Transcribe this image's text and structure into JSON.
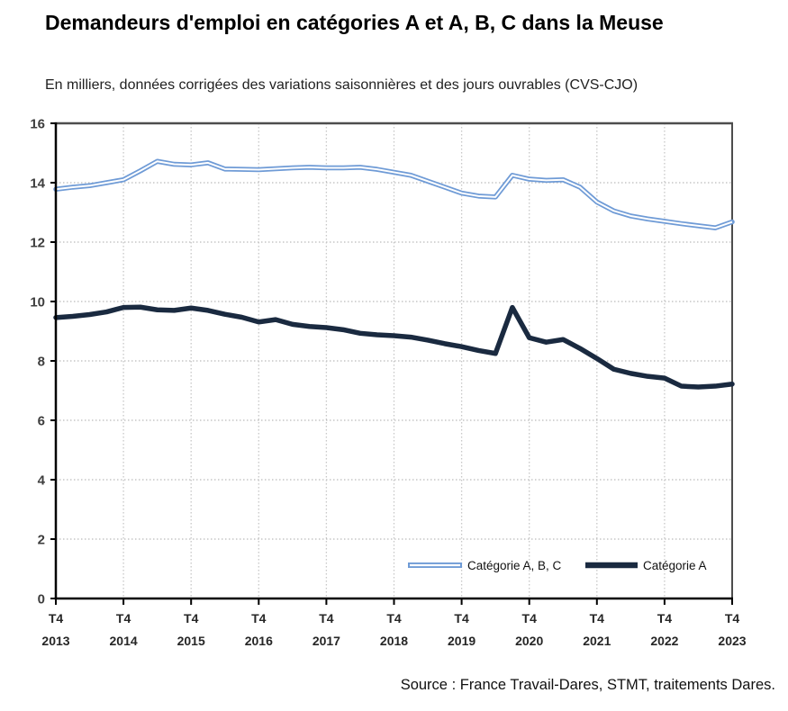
{
  "title": "Demandeurs d'emploi en catégories A et A, B, C dans la Meuse",
  "subtitle": "En milliers, données corrigées des variations saisonnières et des jours ouvrables (CVS-CJO)",
  "source": "Source : France Travail-Dares, STMT, traitements Dares.",
  "chart_data": {
    "type": "line",
    "x_unit": "quarterly, T4 2013 to T4 2023 (41 points)",
    "x_ticks": [
      {
        "q": "T4",
        "year": "2013"
      },
      {
        "q": "T4",
        "year": "2014"
      },
      {
        "q": "T4",
        "year": "2015"
      },
      {
        "q": "T4",
        "year": "2016"
      },
      {
        "q": "T4",
        "year": "2017"
      },
      {
        "q": "T4",
        "year": "2018"
      },
      {
        "q": "T4",
        "year": "2019"
      },
      {
        "q": "T4",
        "year": "2020"
      },
      {
        "q": "T4",
        "year": "2021"
      },
      {
        "q": "T4",
        "year": "2022"
      },
      {
        "q": "T4",
        "year": "2023"
      }
    ],
    "ylim": [
      0,
      16
    ],
    "y_ticks": [
      0,
      2,
      4,
      6,
      8,
      10,
      12,
      14,
      16
    ],
    "grid": true,
    "legend_position": "inside-bottom-right",
    "series": [
      {
        "name": "Catégorie A, B, C",
        "color": "#6f9bd6",
        "style": "double-line",
        "values": [
          13.78,
          13.85,
          13.9,
          14.0,
          14.1,
          14.4,
          14.72,
          14.62,
          14.6,
          14.67,
          14.46,
          14.45,
          14.44,
          14.47,
          14.5,
          14.52,
          14.5,
          14.5,
          14.52,
          14.45,
          14.35,
          14.25,
          14.05,
          13.85,
          13.65,
          13.55,
          13.52,
          14.25,
          14.12,
          14.08,
          14.1,
          13.85,
          13.35,
          13.05,
          12.88,
          12.78,
          12.7,
          12.62,
          12.55,
          12.48,
          12.68
        ]
      },
      {
        "name": "Catégorie A",
        "color": "#1a2a40",
        "style": "thick-line",
        "values": [
          9.46,
          9.5,
          9.56,
          9.65,
          9.8,
          9.81,
          9.72,
          9.7,
          9.78,
          9.7,
          9.57,
          9.47,
          9.31,
          9.39,
          9.23,
          9.16,
          9.12,
          9.05,
          8.93,
          8.88,
          8.85,
          8.8,
          8.7,
          8.58,
          8.48,
          8.35,
          8.25,
          9.8,
          8.78,
          8.63,
          8.72,
          8.42,
          8.08,
          7.72,
          7.58,
          7.48,
          7.42,
          7.15,
          7.12,
          7.15,
          7.22
        ]
      }
    ]
  }
}
